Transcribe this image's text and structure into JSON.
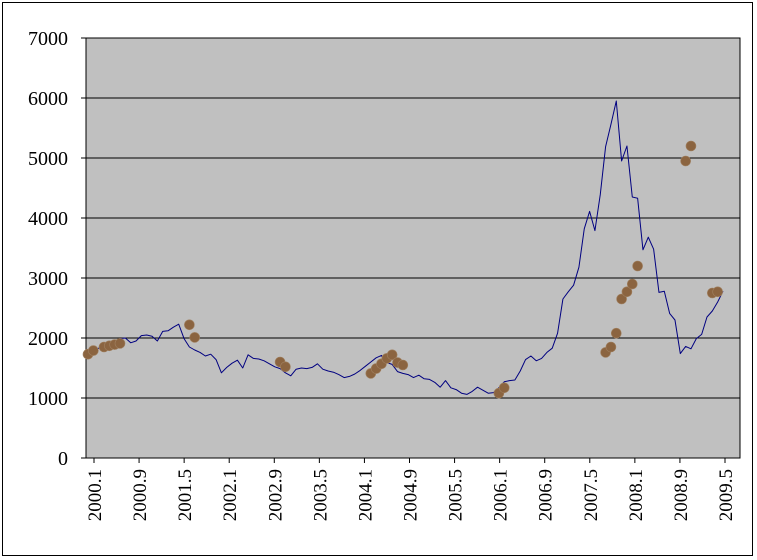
{
  "chart_data": {
    "type": "line",
    "title": "",
    "xlabel": "",
    "ylabel": "",
    "ylim": [
      0,
      7000
    ],
    "y_ticks": [
      "0",
      "1000",
      "2000",
      "3000",
      "4000",
      "5000",
      "6000",
      "7000"
    ],
    "x_ticks": [
      "2000.1",
      "2000.9",
      "2001.5",
      "2002.1",
      "2002.9",
      "2003.5",
      "2004.1",
      "2004.9",
      "2005.5",
      "2006.1",
      "2006.9",
      "2007.5",
      "2008.1",
      "2008.9",
      "2009.5"
    ],
    "grid": "horizontal",
    "legend": "none",
    "colors": {
      "plot_background": "#c0c0c0",
      "line": "#000080",
      "marker": "#8b6440",
      "gridline": "#000000"
    },
    "series": [
      {
        "values": [
          1730,
          1790,
          1830,
          1870,
          1900,
          1930,
          1990,
          2000,
          1920,
          1950,
          2040,
          2050,
          2030,
          1950,
          2110,
          2120,
          2180,
          2230,
          1990,
          1850,
          1800,
          1760,
          1700,
          1730,
          1640,
          1420,
          1510,
          1580,
          1630,
          1500,
          1720,
          1660,
          1650,
          1620,
          1570,
          1520,
          1490,
          1420,
          1370,
          1480,
          1500,
          1490,
          1510,
          1570,
          1480,
          1450,
          1430,
          1390,
          1340,
          1360,
          1400,
          1460,
          1530,
          1600,
          1670,
          1710,
          1590,
          1560,
          1440,
          1410,
          1390,
          1340,
          1380,
          1320,
          1310,
          1260,
          1180,
          1290,
          1170,
          1140,
          1080,
          1060,
          1110,
          1180,
          1130,
          1080,
          1090,
          1170,
          1270,
          1290,
          1300,
          1450,
          1640,
          1700,
          1620,
          1660,
          1760,
          1830,
          2080,
          2650,
          2770,
          2880,
          3180,
          3820,
          4110,
          3790,
          4390,
          5190,
          5560,
          5950,
          4950,
          5200,
          4350,
          4330,
          3470,
          3680,
          3480,
          2760,
          2780,
          2410,
          2300,
          1740,
          1860,
          1820,
          1990,
          2060,
          2350,
          2450,
          2600,
          2780
        ],
        "markers": [
          {
            "i": 0,
            "v": 1730
          },
          {
            "i": 1,
            "v": 1790
          },
          {
            "i": 3,
            "v": 1850
          },
          {
            "i": 4,
            "v": 1870
          },
          {
            "i": 5,
            "v": 1890
          },
          {
            "i": 6,
            "v": 1910
          },
          {
            "i": 19,
            "v": 2220
          },
          {
            "i": 20,
            "v": 2010
          },
          {
            "i": 36,
            "v": 1600
          },
          {
            "i": 37,
            "v": 1520
          },
          {
            "i": 53,
            "v": 1410
          },
          {
            "i": 54,
            "v": 1490
          },
          {
            "i": 55,
            "v": 1570
          },
          {
            "i": 56,
            "v": 1660
          },
          {
            "i": 57,
            "v": 1720
          },
          {
            "i": 58,
            "v": 1590
          },
          {
            "i": 59,
            "v": 1550
          },
          {
            "i": 77,
            "v": 1080
          },
          {
            "i": 78,
            "v": 1170
          },
          {
            "i": 97,
            "v": 1760
          },
          {
            "i": 98,
            "v": 1850
          },
          {
            "i": 99,
            "v": 2080
          },
          {
            "i": 100,
            "v": 2650
          },
          {
            "i": 101,
            "v": 2770
          },
          {
            "i": 102,
            "v": 2900
          },
          {
            "i": 103,
            "v": 3200
          },
          {
            "i": 112,
            "v": 4950
          },
          {
            "i": 113,
            "v": 5200
          },
          {
            "i": 117,
            "v": 2750
          },
          {
            "i": 118,
            "v": 2770
          }
        ]
      }
    ]
  }
}
